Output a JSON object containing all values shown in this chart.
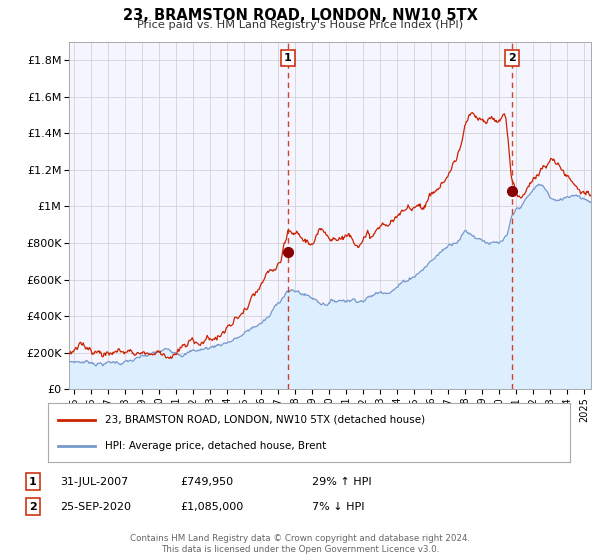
{
  "title": "23, BRAMSTON ROAD, LONDON, NW10 5TX",
  "subtitle": "Price paid vs. HM Land Registry's House Price Index (HPI)",
  "ylim": [
    0,
    1900000
  ],
  "xlim_start": 1994.7,
  "xlim_end": 2025.4,
  "yticks": [
    0,
    200000,
    400000,
    600000,
    800000,
    1000000,
    1200000,
    1400000,
    1600000,
    1800000
  ],
  "ytick_labels": [
    "£0",
    "£200K",
    "£400K",
    "£600K",
    "£800K",
    "£1M",
    "£1.2M",
    "£1.4M",
    "£1.6M",
    "£1.8M"
  ],
  "xticks": [
    1995,
    1996,
    1997,
    1998,
    1999,
    2000,
    2001,
    2002,
    2003,
    2004,
    2005,
    2006,
    2007,
    2008,
    2009,
    2010,
    2011,
    2012,
    2013,
    2014,
    2015,
    2016,
    2017,
    2018,
    2019,
    2020,
    2021,
    2022,
    2023,
    2024,
    2025
  ],
  "red_line_color": "#cc2200",
  "blue_line_color": "#7799cc",
  "fill_color": "#ddeeff",
  "background_color": "#f5f5ff",
  "grid_color": "#cccccc",
  "marker1_x": 2007.58,
  "marker1_y": 749950,
  "marker1_label": "1",
  "marker1_date": "31-JUL-2007",
  "marker1_price": "£749,950",
  "marker1_hpi": "29% ↑ HPI",
  "marker2_x": 2020.73,
  "marker2_y": 1085000,
  "marker2_label": "2",
  "marker2_date": "25-SEP-2020",
  "marker2_price": "£1,085,000",
  "marker2_hpi": "7% ↓ HPI",
  "vline1_x": 2007.58,
  "vline2_x": 2020.73,
  "legend_line1": "23, BRAMSTON ROAD, LONDON, NW10 5TX (detached house)",
  "legend_line2": "HPI: Average price, detached house, Brent",
  "footer1": "Contains HM Land Registry data © Crown copyright and database right 2024.",
  "footer2": "This data is licensed under the Open Government Licence v3.0.",
  "hpi_anchors_x": [
    1994.7,
    1995.0,
    1997.0,
    1999.0,
    2001.0,
    2003.0,
    2005.0,
    2006.5,
    2007.5,
    2008.5,
    2009.5,
    2010.5,
    2012.0,
    2013.0,
    2014.5,
    2015.5,
    2016.5,
    2017.5,
    2018.0,
    2018.5,
    2019.0,
    2019.5,
    2020.0,
    2020.5,
    2020.73,
    2021.0,
    2021.5,
    2022.0,
    2022.3,
    2022.7,
    2023.0,
    2023.5,
    2024.0,
    2024.5,
    2025.0,
    2025.4
  ],
  "hpi_anchors_y": [
    150000,
    155000,
    165000,
    185000,
    215000,
    255000,
    340000,
    430000,
    580000,
    560000,
    520000,
    545000,
    580000,
    620000,
    710000,
    790000,
    880000,
    970000,
    1030000,
    1010000,
    1000000,
    990000,
    970000,
    1000000,
    1085000,
    1120000,
    1170000,
    1220000,
    1250000,
    1230000,
    1180000,
    1150000,
    1180000,
    1210000,
    1200000,
    1195000
  ],
  "red_anchors_x": [
    1994.7,
    1995.0,
    1996.0,
    1997.5,
    1999.0,
    2000.5,
    2002.0,
    2003.5,
    2004.5,
    2005.5,
    2006.3,
    2006.8,
    2007.2,
    2007.58,
    2007.9,
    2008.3,
    2008.7,
    2009.0,
    2009.4,
    2009.9,
    2010.5,
    2011.0,
    2011.8,
    2012.5,
    2013.0,
    2013.8,
    2014.5,
    2015.0,
    2015.5,
    2016.0,
    2016.4,
    2016.8,
    2017.2,
    2017.5,
    2017.8,
    2018.0,
    2018.3,
    2018.6,
    2018.9,
    2019.2,
    2019.5,
    2019.8,
    2020.1,
    2020.4,
    2020.73,
    2021.0,
    2021.3,
    2021.6,
    2022.0,
    2022.3,
    2022.6,
    2022.9,
    2023.2,
    2023.5,
    2023.8,
    2024.1,
    2024.4,
    2024.7,
    2025.0
  ],
  "red_anchors_y": [
    192000,
    195000,
    200000,
    215000,
    230000,
    255000,
    290000,
    355000,
    425000,
    510000,
    580000,
    610000,
    640000,
    749950,
    740000,
    720000,
    700000,
    690000,
    710000,
    720000,
    745000,
    760000,
    790000,
    800000,
    830000,
    860000,
    880000,
    940000,
    970000,
    1020000,
    1060000,
    1110000,
    1170000,
    1230000,
    1320000,
    1400000,
    1440000,
    1400000,
    1370000,
    1350000,
    1360000,
    1360000,
    1380000,
    1380000,
    1085000,
    980000,
    970000,
    1000000,
    1070000,
    1120000,
    1140000,
    1160000,
    1160000,
    1140000,
    1120000,
    1100000,
    1080000,
    1090000,
    1080000
  ]
}
